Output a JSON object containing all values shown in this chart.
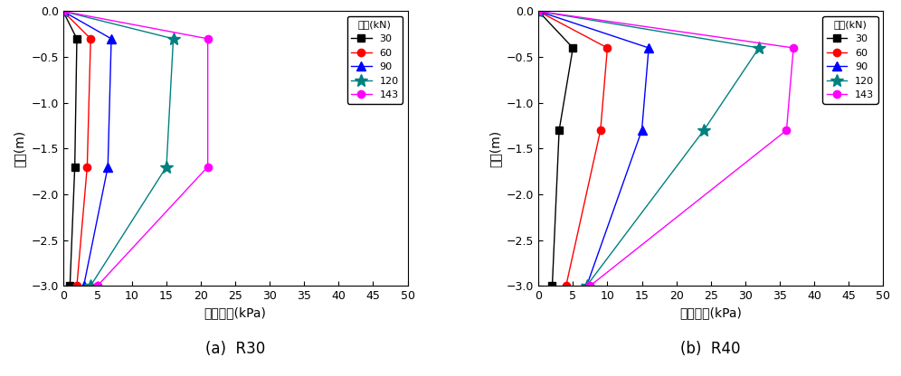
{
  "R30": {
    "series": [
      {
        "label": "30",
        "color": "#000000",
        "marker": "s",
        "x": [
          0,
          2.0,
          1.7,
          1.0
        ],
        "y": [
          0.0,
          -0.3,
          -1.7,
          -3.0
        ]
      },
      {
        "label": "60",
        "color": "#FF0000",
        "marker": "o",
        "x": [
          0,
          4.0,
          3.5,
          2.0
        ],
        "y": [
          0.0,
          -0.3,
          -1.7,
          -3.0
        ]
      },
      {
        "label": "90",
        "color": "#0000FF",
        "marker": "^",
        "x": [
          0,
          7.0,
          6.5,
          3.0
        ],
        "y": [
          0.0,
          -0.3,
          -1.7,
          -3.0
        ]
      },
      {
        "label": "120",
        "color": "#008080",
        "marker": "*",
        "x": [
          0,
          16.0,
          15.0,
          4.0
        ],
        "y": [
          0.0,
          -0.3,
          -1.7,
          -3.0
        ]
      },
      {
        "label": "143",
        "color": "#FF00FF",
        "marker": "o",
        "x": [
          0,
          21.0,
          21.0,
          5.0
        ],
        "y": [
          0.0,
          -0.3,
          -1.7,
          -3.0
        ]
      }
    ],
    "subtitle": "(a)  R30",
    "xlabel": "연직토압(kPa)",
    "ylabel": "심도(m)"
  },
  "R40": {
    "series": [
      {
        "label": "30",
        "color": "#000000",
        "marker": "s",
        "x": [
          0,
          5.0,
          3.0,
          2.0
        ],
        "y": [
          0.0,
          -0.4,
          -1.3,
          -3.0
        ]
      },
      {
        "label": "60",
        "color": "#FF0000",
        "marker": "o",
        "x": [
          0,
          10.0,
          9.0,
          4.0
        ],
        "y": [
          0.0,
          -0.4,
          -1.3,
          -3.0
        ]
      },
      {
        "label": "90",
        "color": "#0000FF",
        "marker": "^",
        "x": [
          0,
          16.0,
          15.0,
          7.0
        ],
        "y": [
          0.0,
          -0.4,
          -1.3,
          -3.0
        ]
      },
      {
        "label": "120",
        "color": "#008080",
        "marker": "*",
        "x": [
          0,
          32.0,
          24.0,
          7.0
        ],
        "y": [
          0.0,
          -0.4,
          -1.3,
          -3.0
        ]
      },
      {
        "label": "143",
        "color": "#FF00FF",
        "marker": "o",
        "x": [
          0,
          37.0,
          36.0,
          7.5
        ],
        "y": [
          0.0,
          -0.4,
          -1.3,
          -3.0
        ]
      }
    ],
    "subtitle": "(b)  R40",
    "xlabel": "연직토압(kPa)",
    "ylabel": "심도(m)"
  },
  "legend_title": "하중(kN)",
  "xlim": [
    0,
    50
  ],
  "ylim": [
    -3.0,
    0.0
  ],
  "xticks": [
    0,
    5,
    10,
    15,
    20,
    25,
    30,
    35,
    40,
    45,
    50
  ],
  "yticks": [
    0.0,
    -0.5,
    -1.0,
    -1.5,
    -2.0,
    -2.5,
    -3.0
  ],
  "marker_size_map": {
    "s": 6,
    "o": 6,
    "^": 7,
    "*": 10
  }
}
